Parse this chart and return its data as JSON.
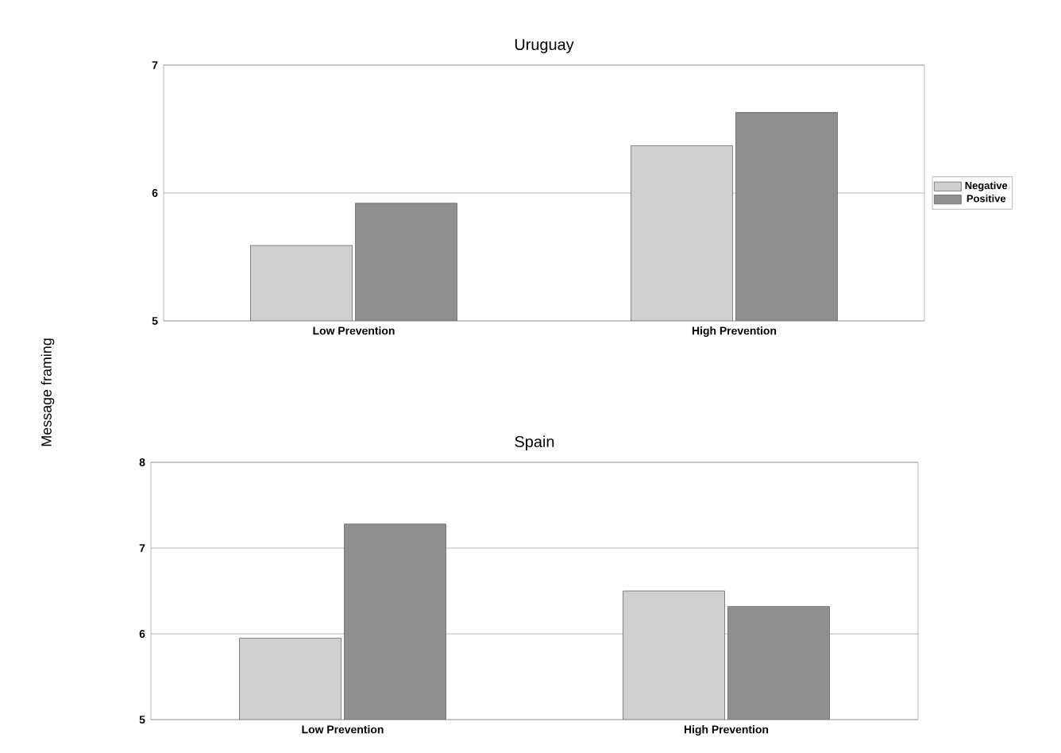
{
  "chart_data": [
    {
      "type": "bar",
      "title": "Uruguay",
      "ylabel": "Message framing",
      "categories": [
        "Low Prevention",
        "High Prevention"
      ],
      "series": [
        {
          "name": "Negative",
          "color": "#d0d0d0",
          "values": [
            5.59,
            6.37
          ]
        },
        {
          "name": "Positive",
          "color": "#8f8f8f",
          "values": [
            5.92,
            6.63
          ]
        }
      ],
      "ylim": [
        5,
        7
      ],
      "yticks": [
        5,
        6,
        7
      ],
      "grid": "y",
      "legend": "right"
    },
    {
      "type": "bar",
      "title": "Spain",
      "categories": [
        "Low Prevention",
        "High Prevention"
      ],
      "series": [
        {
          "color": "#d0d0d0",
          "values": [
            5.95,
            6.5
          ]
        },
        {
          "color": "#8f8f8f",
          "values": [
            7.28,
            6.32
          ]
        }
      ],
      "ylim": [
        5,
        8
      ],
      "yticks": [
        5,
        6,
        7,
        8
      ],
      "grid": "y"
    }
  ]
}
